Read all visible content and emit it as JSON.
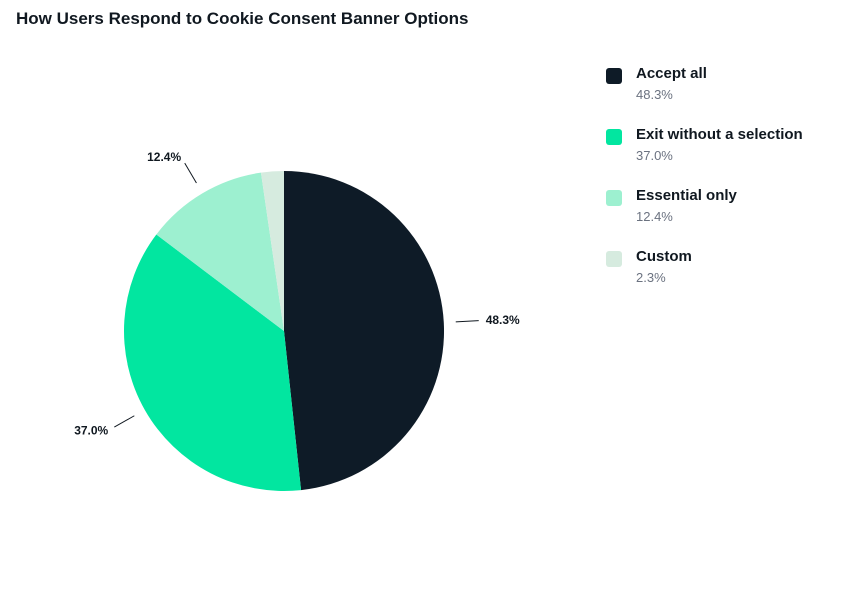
{
  "title": "How Users Respond to Cookie Consent Banner Options",
  "chart_data": {
    "type": "pie",
    "title": "How Users Respond to Cookie Consent Banner Options",
    "legend_position": "right",
    "slices": [
      {
        "name": "Accept all",
        "value": 48.3,
        "label": "48.3%",
        "color": "#0e1b27"
      },
      {
        "name": "Exit without a selection",
        "value": 37.0,
        "label": "37.0%",
        "color": "#02e6a0"
      },
      {
        "name": "Essential only",
        "value": 12.4,
        "label": "12.4%",
        "color": "#9df0d0"
      },
      {
        "name": "Custom",
        "value": 2.3,
        "label": "2.3%",
        "color": "#d6ebdf"
      }
    ]
  }
}
